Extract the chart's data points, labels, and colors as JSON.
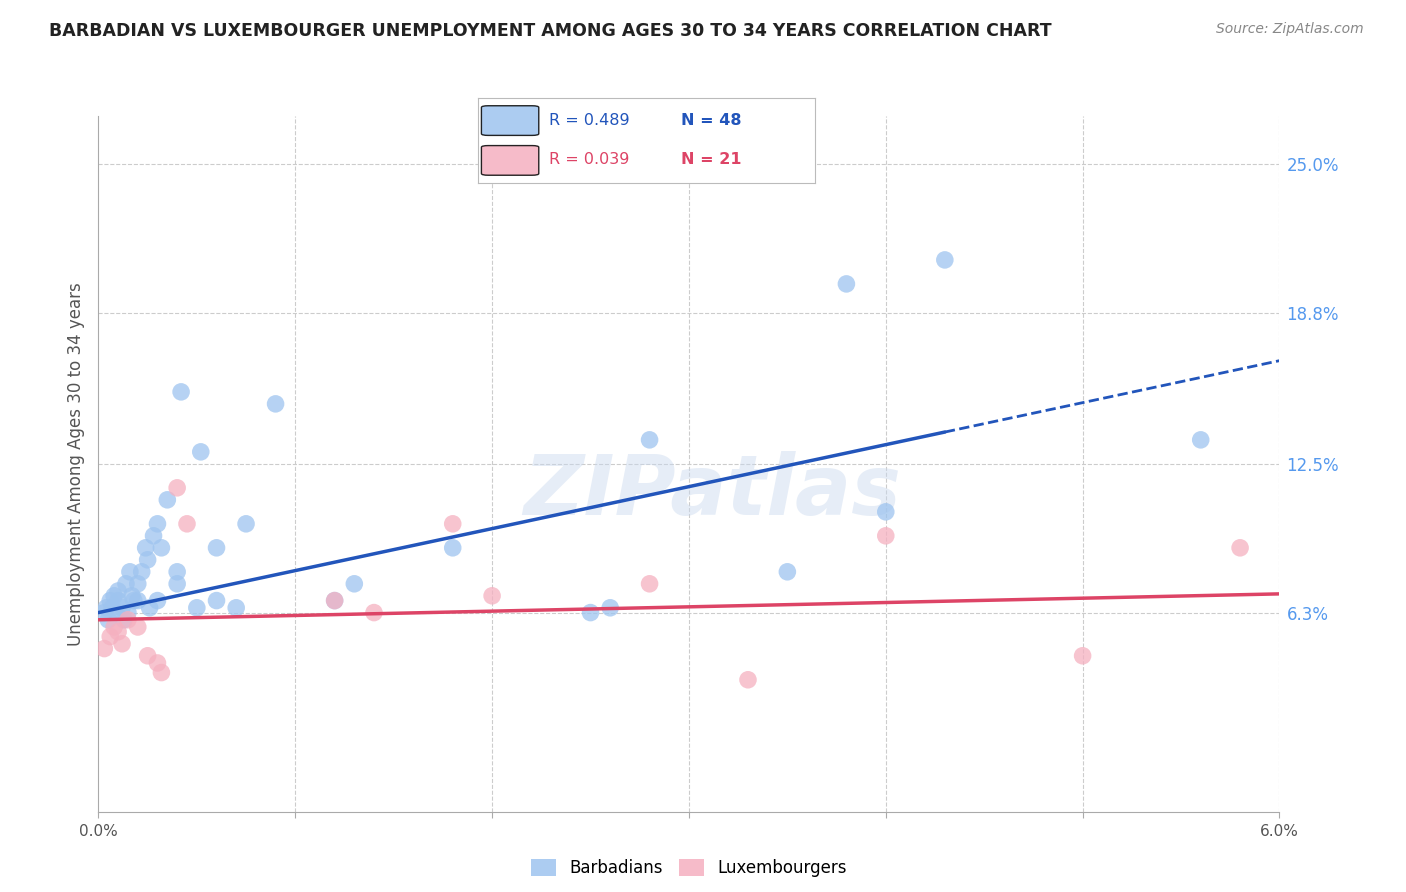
{
  "title": "BARBADIAN VS LUXEMBOURGER UNEMPLOYMENT AMONG AGES 30 TO 34 YEARS CORRELATION CHART",
  "source": "Source: ZipAtlas.com",
  "ylabel": "Unemployment Among Ages 30 to 34 years",
  "xlim": [
    0.0,
    0.06
  ],
  "ylim": [
    -0.02,
    0.27
  ],
  "x_tick_labels": [
    "0.0%",
    "",
    "",
    "",
    "",
    "",
    "6.0%"
  ],
  "x_tick_values": [
    0.0,
    0.01,
    0.02,
    0.03,
    0.04,
    0.05,
    0.06
  ],
  "right_y_tick_labels": [
    "25.0%",
    "18.8%",
    "12.5%",
    "6.3%"
  ],
  "right_y_tick_values": [
    0.25,
    0.188,
    0.125,
    0.063
  ],
  "watermark": "ZIPatlas",
  "barbadian_color": "#9ec4ef",
  "luxembourger_color": "#f5b0c0",
  "barbadian_R": 0.489,
  "barbadian_N": 48,
  "luxembourger_R": 0.039,
  "luxembourger_N": 21,
  "barbadian_line_color": "#2255bb",
  "luxembourger_line_color": "#dd4466",
  "barbadian_scatter_x": [
    0.0003,
    0.0004,
    0.0005,
    0.0006,
    0.0007,
    0.0008,
    0.0009,
    0.001,
    0.001,
    0.0012,
    0.0013,
    0.0014,
    0.0015,
    0.0016,
    0.0017,
    0.0018,
    0.002,
    0.002,
    0.0022,
    0.0024,
    0.0025,
    0.0026,
    0.0028,
    0.003,
    0.003,
    0.0032,
    0.0035,
    0.004,
    0.004,
    0.0042,
    0.005,
    0.0052,
    0.006,
    0.006,
    0.007,
    0.0075,
    0.009,
    0.012,
    0.013,
    0.018,
    0.025,
    0.026,
    0.028,
    0.035,
    0.038,
    0.04,
    0.043,
    0.056
  ],
  "barbadian_scatter_y": [
    0.063,
    0.065,
    0.06,
    0.068,
    0.065,
    0.07,
    0.063,
    0.068,
    0.072,
    0.065,
    0.06,
    0.075,
    0.063,
    0.08,
    0.07,
    0.068,
    0.075,
    0.068,
    0.08,
    0.09,
    0.085,
    0.065,
    0.095,
    0.068,
    0.1,
    0.09,
    0.11,
    0.075,
    0.08,
    0.155,
    0.065,
    0.13,
    0.068,
    0.09,
    0.065,
    0.1,
    0.15,
    0.068,
    0.075,
    0.09,
    0.063,
    0.065,
    0.135,
    0.08,
    0.2,
    0.105,
    0.21,
    0.135
  ],
  "luxembourger_scatter_x": [
    0.0003,
    0.0006,
    0.0008,
    0.001,
    0.0012,
    0.0015,
    0.002,
    0.0025,
    0.003,
    0.0032,
    0.004,
    0.0045,
    0.012,
    0.014,
    0.018,
    0.02,
    0.028,
    0.033,
    0.04,
    0.05,
    0.058
  ],
  "luxembourger_scatter_y": [
    0.048,
    0.053,
    0.057,
    0.055,
    0.05,
    0.06,
    0.057,
    0.045,
    0.042,
    0.038,
    0.115,
    0.1,
    0.068,
    0.063,
    0.1,
    0.07,
    0.075,
    0.035,
    0.095,
    0.045,
    0.09
  ],
  "background_color": "#ffffff",
  "grid_color": "#cccccc"
}
